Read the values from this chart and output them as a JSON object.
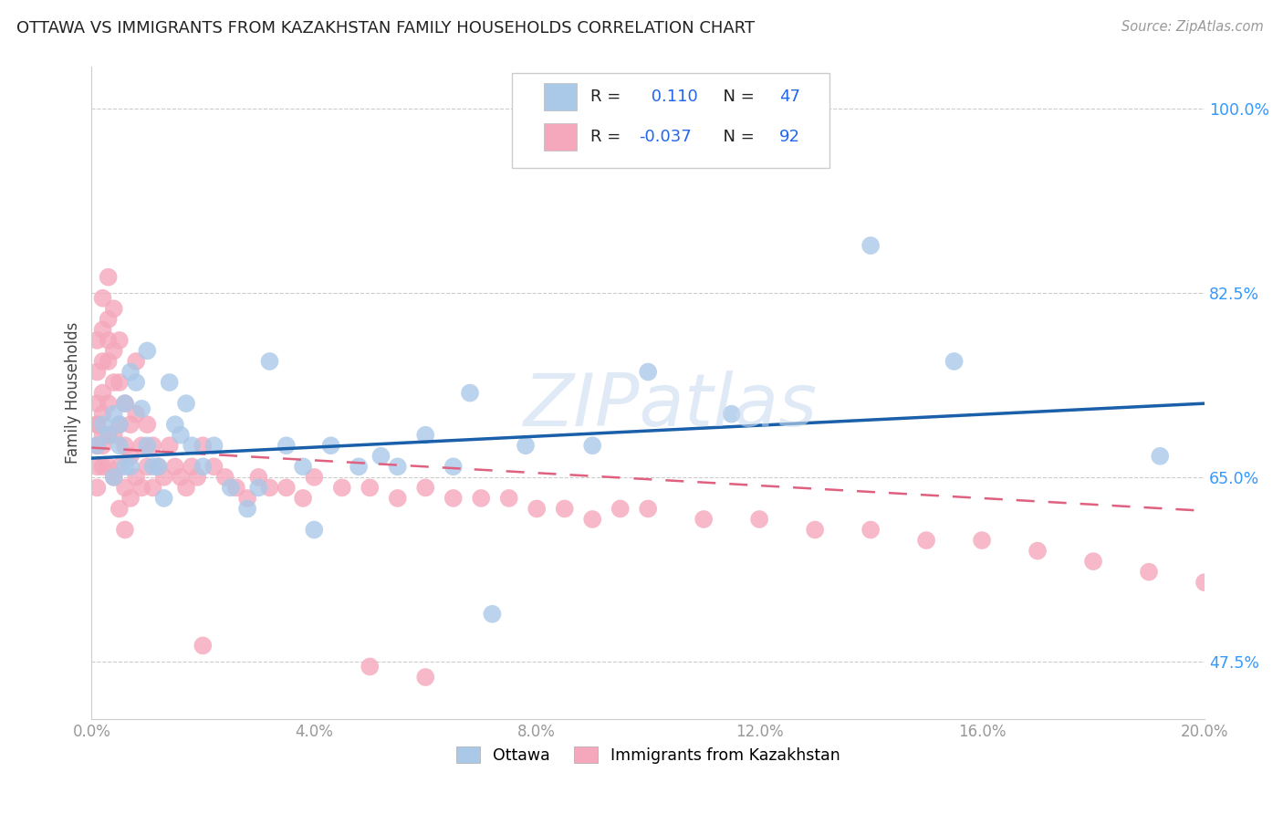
{
  "title": "OTTAWA VS IMMIGRANTS FROM KAZAKHSTAN FAMILY HOUSEHOLDS CORRELATION CHART",
  "source": "Source: ZipAtlas.com",
  "ylabel": "Family Households",
  "yticks": [
    "47.5%",
    "65.0%",
    "82.5%",
    "100.0%"
  ],
  "ytick_values": [
    0.475,
    0.65,
    0.825,
    1.0
  ],
  "xlim": [
    0.0,
    0.2
  ],
  "ylim": [
    0.42,
    1.04
  ],
  "r_ottawa": 0.11,
  "n_ottawa": 47,
  "r_kaz": -0.037,
  "n_kaz": 92,
  "ottawa_color": "#aac8e8",
  "kaz_color": "#f5a8bc",
  "trend_ottawa_color": "#1a5faa",
  "trend_kaz_color": "#e06080",
  "watermark": "ZIPatlas",
  "ottawa_points_x": [
    0.001,
    0.002,
    0.003,
    0.004,
    0.004,
    0.005,
    0.005,
    0.006,
    0.006,
    0.007,
    0.007,
    0.008,
    0.009,
    0.01,
    0.01,
    0.011,
    0.012,
    0.013,
    0.014,
    0.015,
    0.016,
    0.017,
    0.018,
    0.02,
    0.022,
    0.025,
    0.028,
    0.03,
    0.032,
    0.035,
    0.038,
    0.04,
    0.043,
    0.048,
    0.052,
    0.055,
    0.06,
    0.065,
    0.068,
    0.072,
    0.078,
    0.09,
    0.1,
    0.115,
    0.14,
    0.155,
    0.192
  ],
  "ottawa_points_y": [
    0.68,
    0.7,
    0.69,
    0.71,
    0.65,
    0.7,
    0.68,
    0.72,
    0.66,
    0.75,
    0.66,
    0.74,
    0.715,
    0.68,
    0.77,
    0.66,
    0.66,
    0.63,
    0.74,
    0.7,
    0.69,
    0.72,
    0.68,
    0.66,
    0.68,
    0.64,
    0.62,
    0.64,
    0.76,
    0.68,
    0.66,
    0.6,
    0.68,
    0.66,
    0.67,
    0.66,
    0.69,
    0.66,
    0.73,
    0.52,
    0.68,
    0.68,
    0.75,
    0.71,
    0.87,
    0.76,
    0.67
  ],
  "kaz_points_x": [
    0.001,
    0.001,
    0.001,
    0.001,
    0.001,
    0.001,
    0.001,
    0.001,
    0.002,
    0.002,
    0.002,
    0.002,
    0.002,
    0.002,
    0.002,
    0.002,
    0.003,
    0.003,
    0.003,
    0.003,
    0.003,
    0.003,
    0.003,
    0.004,
    0.004,
    0.004,
    0.004,
    0.004,
    0.005,
    0.005,
    0.005,
    0.005,
    0.005,
    0.006,
    0.006,
    0.006,
    0.006,
    0.007,
    0.007,
    0.007,
    0.008,
    0.008,
    0.008,
    0.009,
    0.009,
    0.01,
    0.01,
    0.011,
    0.011,
    0.012,
    0.013,
    0.014,
    0.015,
    0.016,
    0.017,
    0.018,
    0.019,
    0.02,
    0.022,
    0.024,
    0.026,
    0.028,
    0.03,
    0.032,
    0.035,
    0.038,
    0.04,
    0.045,
    0.05,
    0.055,
    0.06,
    0.065,
    0.07,
    0.075,
    0.08,
    0.085,
    0.09,
    0.095,
    0.1,
    0.11,
    0.12,
    0.13,
    0.14,
    0.15,
    0.16,
    0.17,
    0.18,
    0.19,
    0.2,
    0.05,
    0.06,
    0.02
  ],
  "kaz_points_y": [
    0.7,
    0.72,
    0.68,
    0.66,
    0.64,
    0.75,
    0.78,
    0.7,
    0.82,
    0.79,
    0.68,
    0.71,
    0.66,
    0.73,
    0.69,
    0.76,
    0.84,
    0.8,
    0.76,
    0.72,
    0.78,
    0.69,
    0.66,
    0.81,
    0.77,
    0.74,
    0.69,
    0.65,
    0.78,
    0.74,
    0.7,
    0.66,
    0.62,
    0.72,
    0.68,
    0.64,
    0.6,
    0.7,
    0.67,
    0.63,
    0.76,
    0.71,
    0.65,
    0.68,
    0.64,
    0.7,
    0.66,
    0.68,
    0.64,
    0.66,
    0.65,
    0.68,
    0.66,
    0.65,
    0.64,
    0.66,
    0.65,
    0.68,
    0.66,
    0.65,
    0.64,
    0.63,
    0.65,
    0.64,
    0.64,
    0.63,
    0.65,
    0.64,
    0.64,
    0.63,
    0.64,
    0.63,
    0.63,
    0.63,
    0.62,
    0.62,
    0.61,
    0.62,
    0.62,
    0.61,
    0.61,
    0.6,
    0.6,
    0.59,
    0.59,
    0.58,
    0.57,
    0.56,
    0.55,
    0.47,
    0.46,
    0.49
  ]
}
